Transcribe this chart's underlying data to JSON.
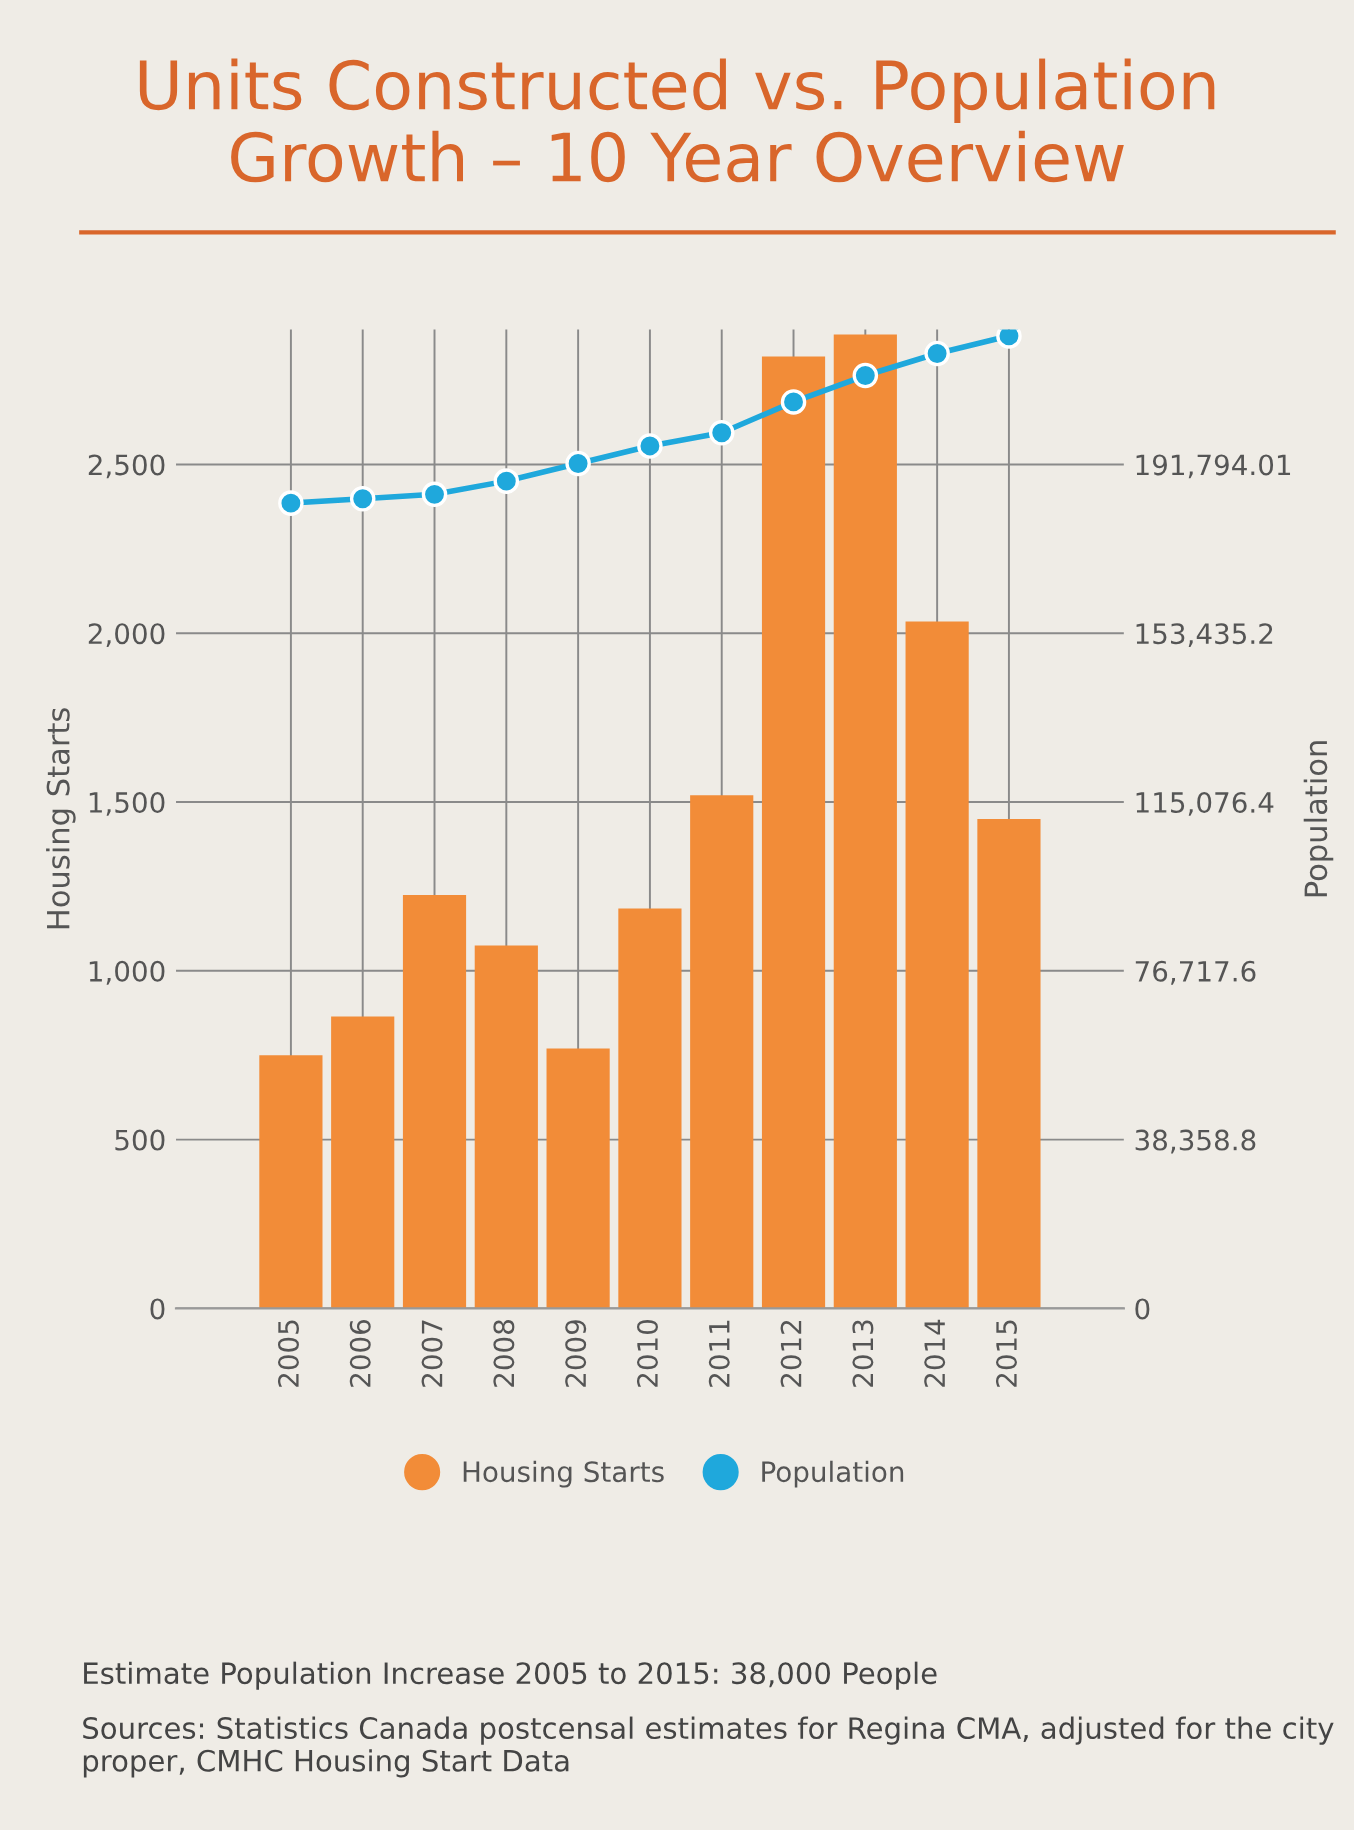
{
  "chart_data": {
    "type": "bar",
    "title": "Units Constructed vs. Population\nGrowth – 10 Year Overview",
    "ylabel": "Housing Starts",
    "y2label": "Population",
    "categories": [
      "2005",
      "2006",
      "2007",
      "2008",
      "2009",
      "2010",
      "2011",
      "2012",
      "2013",
      "2014",
      "2015"
    ],
    "series": [
      {
        "name": "Housing Starts",
        "color": "#f28c38",
        "values": [
          750,
          865,
          1225,
          1075,
          770,
          1185,
          1520,
          2820,
          2885,
          2035,
          1450
        ]
      },
      {
        "name": "Population",
        "type": "line",
        "axis": "y2",
        "color": "#1fa8dc",
        "marker": "circle",
        "line_style": "solid",
        "values": [
          183000,
          184000,
          185000,
          188000,
          192000,
          196000,
          199000,
          206000,
          212000,
          217000,
          221000
        ]
      }
    ],
    "ylim": [
      0,
      2900
    ],
    "yticks": [
      0,
      500,
      {
        "value": 1000,
        "label": "1,000"
      },
      {
        "value": 1500,
        "label": "1,500"
      },
      {
        "value": 2000,
        "label": "2,000"
      },
      {
        "value": 2500,
        "label": "2,500"
      }
    ],
    "y2lim": [
      0,
      222481
    ],
    "y2ticks": [
      0,
      {
        "value": 38358.8,
        "label": "38,358.8"
      },
      {
        "value": 76717.6,
        "label": "76,717.6"
      },
      {
        "value": 115076.4,
        "label": "115,076.4"
      },
      {
        "value": 153435.2,
        "label": "153,435.2"
      },
      {
        "value": 191794.01,
        "label": "191,794.01"
      }
    ],
    "grid": true,
    "legend": "bottom",
    "annotations": [
      "Estimate Population Increase 2005 to 2015: 38,000 People",
      "Sources: Statistics Canada postcensal estimates for Regina CMA, adjusted for the city proper, CMHC Housing Start Data"
    ]
  }
}
